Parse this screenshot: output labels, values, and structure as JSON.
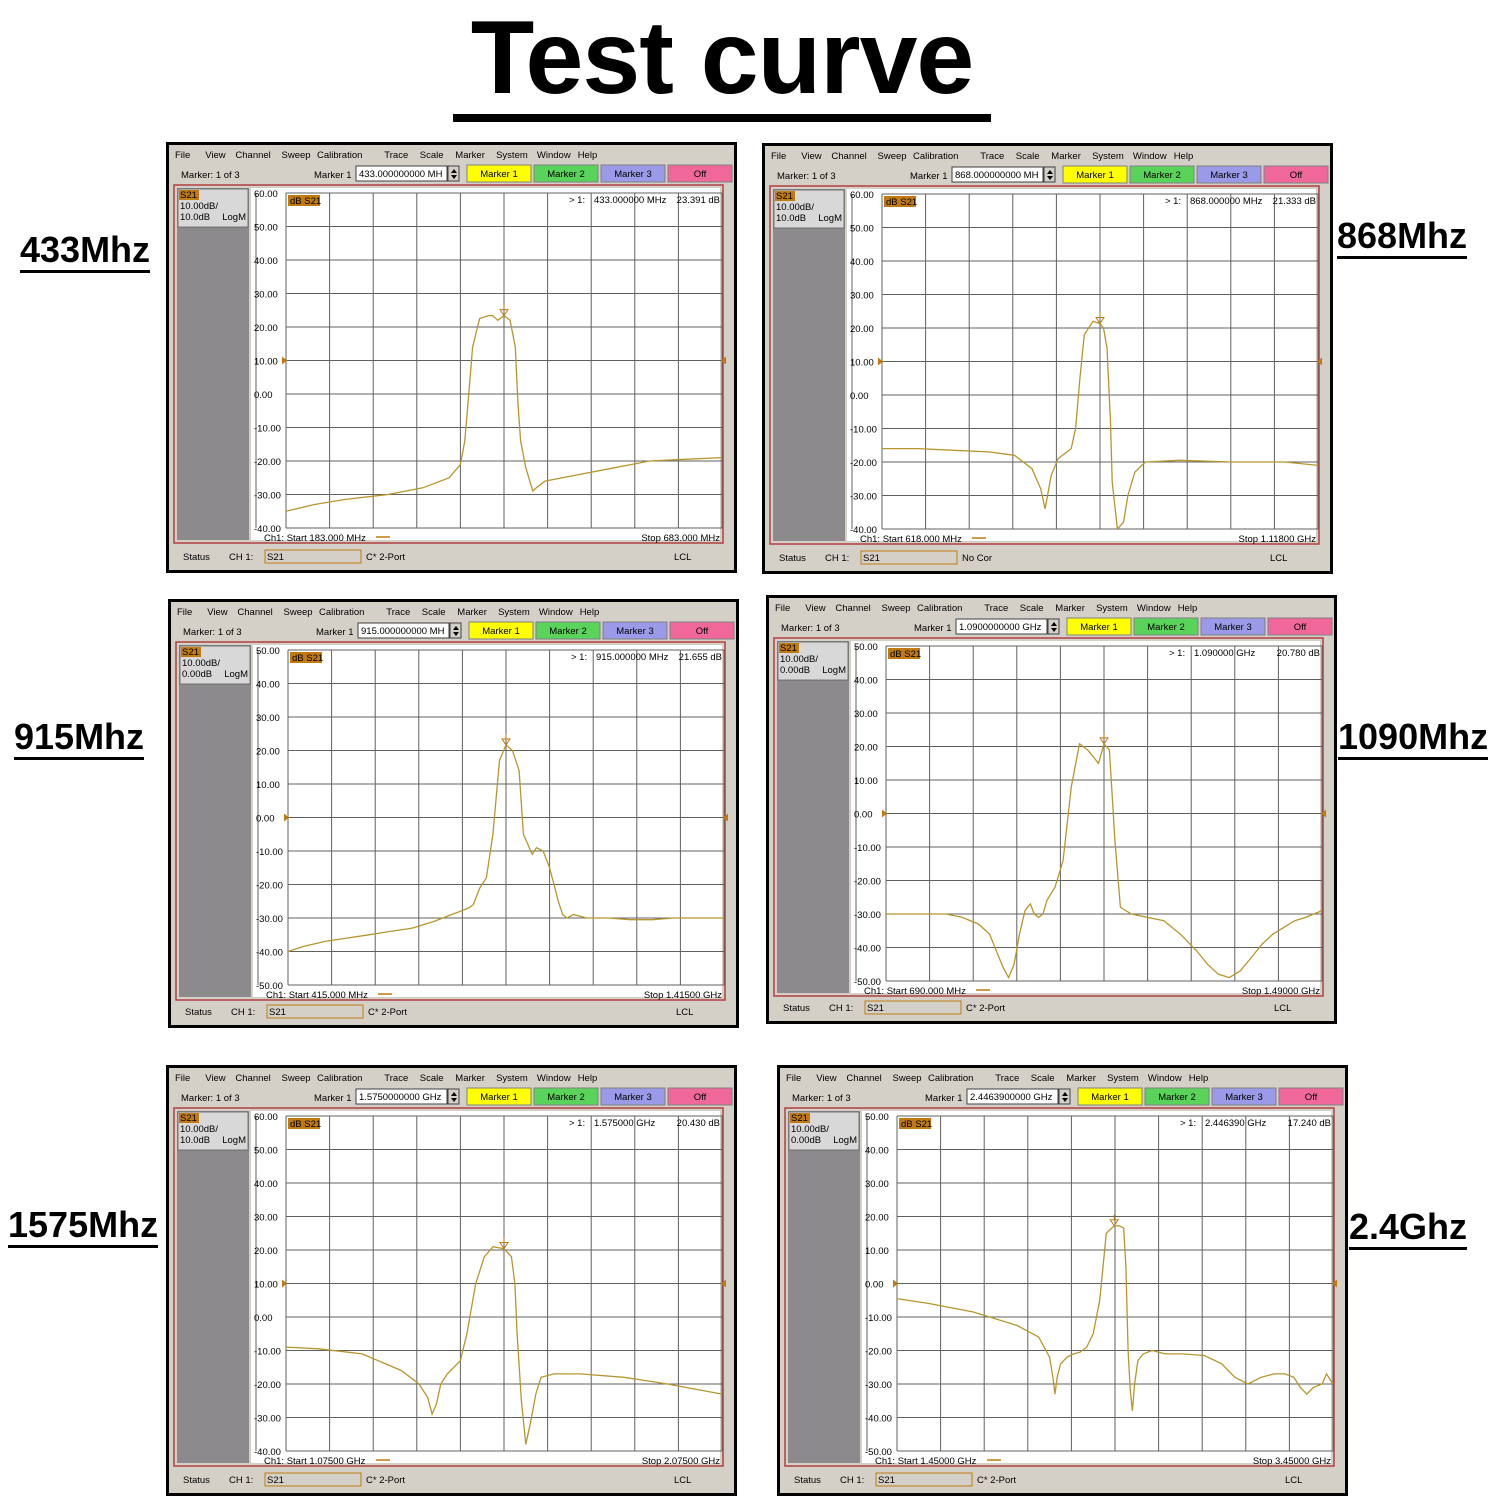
{
  "title": "Test curve",
  "menu": [
    "File",
    "View",
    "Channel",
    "Sweep",
    "Calibration",
    "Trace",
    "Scale",
    "Marker",
    "System",
    "Window",
    "Help"
  ],
  "marker_count_label": "Marker: 1 of 3",
  "marker_field_label": "Marker 1",
  "marker_buttons": [
    {
      "label": "Marker 1",
      "color": "#ffff00"
    },
    {
      "label": "Marker 2",
      "color": "#5ad35a"
    },
    {
      "label": "Marker 3",
      "color": "#9a9ae8"
    },
    {
      "label": "Off",
      "color": "#f0689a"
    }
  ],
  "status_label": "Status",
  "channel_label": "CH 1:",
  "trace_id": "S21",
  "trace_name": "dB S21",
  "lcl": "LCL",
  "colors": {
    "trace": "#b8962e",
    "marker_orange": "#c07a10",
    "window_gray": "#d4d0c8",
    "panel_gray": "#8c8a8c",
    "frame_red": "#b04040"
  },
  "panels": [
    {
      "band": "433Mhz",
      "marker_value": "433.000000000 MH",
      "scale_line1": "10.00dB/",
      "scale_line2": "10.0dB",
      "format": "LogM",
      "marker_readout": {
        "index": "> 1:",
        "freq": "433.000000 MHz",
        "value": "23.391 dB"
      },
      "start_label": "Ch1: Start  183.000 MHz",
      "stop_label": "Stop  683.000 MHz",
      "cal": "C* 2-Port"
    },
    {
      "band": "868Mhz",
      "marker_value": "868.000000000 MH",
      "scale_line1": "10.00dB/",
      "scale_line2": "10.0dB",
      "format": "LogM",
      "marker_readout": {
        "index": "> 1:",
        "freq": "868.000000 MHz",
        "value": "21.333 dB"
      },
      "start_label": "Ch1: Start  618.000 MHz",
      "stop_label": "Stop  1.11800 GHz",
      "cal": "No Cor"
    },
    {
      "band": "915Mhz",
      "marker_value": "915.000000000 MH",
      "scale_line1": "10.00dB/",
      "scale_line2": "0.00dB",
      "format": "LogM",
      "marker_readout": {
        "index": "> 1:",
        "freq": "915.000000 MHz",
        "value": "21.655 dB"
      },
      "start_label": "Ch1: Start  415.000 MHz",
      "stop_label": "Stop  1.41500 GHz",
      "cal": "C* 2-Port"
    },
    {
      "band": "1090Mhz",
      "marker_value": "1.0900000000 GHz",
      "scale_line1": "10.00dB/",
      "scale_line2": "0.00dB",
      "format": "LogM",
      "marker_readout": {
        "index": "> 1:",
        "freq": "1.090000 GHz",
        "value": "20.780 dB"
      },
      "start_label": "Ch1: Start  690.000 MHz",
      "stop_label": "Stop  1.49000 GHz",
      "cal": "C* 2-Port"
    },
    {
      "band": "1575Mhz",
      "marker_value": "1.5750000000 GHz",
      "scale_line1": "10.00dB/",
      "scale_line2": "10.0dB",
      "format": "LogM",
      "marker_readout": {
        "index": "> 1:",
        "freq": "1.575000 GHz",
        "value": "20.430 dB"
      },
      "start_label": "Ch1: Start  1.07500 GHz",
      "stop_label": "Stop  2.07500 GHz",
      "cal": "C* 2-Port"
    },
    {
      "band": "2.4Ghz",
      "marker_value": "2.4463900000 GHz",
      "scale_line1": "10.00dB/",
      "scale_line2": "0.00dB",
      "format": "LogM",
      "marker_readout": {
        "index": "> 1:",
        "freq": "2.446390 GHz",
        "value": "17.240 dB"
      },
      "start_label": "Ch1: Start  1.45000 GHz",
      "stop_label": "Stop  3.45000 GHz",
      "cal": "C* 2-Port"
    }
  ],
  "chart_data": [
    {
      "type": "line",
      "ylim": [
        -40,
        60
      ],
      "yticks": [
        "60.00",
        "50.00",
        "40.00",
        "30.00",
        "20.00",
        "10.00",
        "0.00",
        "-10.00",
        "-20.00",
        "-30.00",
        "-40.00"
      ],
      "xlim_mhz": [
        183,
        683
      ],
      "marker": {
        "x": 433,
        "y": 23.391
      },
      "series": [
        {
          "x": [
            183,
            215,
            250,
            300,
            340,
            370,
            383,
            388,
            392,
            397,
            405,
            415,
            420,
            426,
            433,
            440,
            446,
            449,
            452,
            458,
            466,
            470,
            480,
            520,
            560,
            600,
            640,
            683
          ],
          "y": [
            -35,
            -33,
            -31.5,
            -30,
            -28,
            -25,
            -21,
            -14,
            -2,
            14,
            22.5,
            23.4,
            23.4,
            22,
            23.4,
            22,
            14,
            -3,
            -14,
            -22,
            -29,
            -28,
            -26,
            -24,
            -22,
            -20,
            -19.5,
            -19
          ]
        }
      ]
    },
    {
      "type": "line",
      "ylim": [
        -40,
        60
      ],
      "yticks": [
        "60.00",
        "50.00",
        "40.00",
        "30.00",
        "20.00",
        "10.00",
        "0.00",
        "-10.00",
        "-20.00",
        "-30.00",
        "-40.00"
      ],
      "xlim_mhz": [
        618,
        1118
      ],
      "marker": {
        "x": 868,
        "y": 21.333
      },
      "series": [
        {
          "x": [
            618,
            660,
            700,
            740,
            770,
            790,
            800,
            805,
            812,
            820,
            830,
            835,
            840,
            845,
            850,
            860,
            868,
            872,
            876,
            880,
            882,
            888,
            895,
            900,
            908,
            920,
            960,
            1020,
            1080,
            1118
          ],
          "y": [
            -16,
            -16,
            -16.5,
            -17,
            -18,
            -22,
            -28,
            -34,
            -24,
            -19,
            -17,
            -16,
            -10,
            5,
            18,
            22,
            21.3,
            20,
            14,
            -8,
            -26,
            -40,
            -38,
            -30,
            -23,
            -20,
            -19.5,
            -20,
            -20,
            -21
          ]
        }
      ]
    },
    {
      "type": "line",
      "ylim": [
        -50,
        50
      ],
      "yticks": [
        "50.00",
        "40.00",
        "30.00",
        "20.00",
        "10.00",
        "0.00",
        "-10.00",
        "-20.00",
        "-30.00",
        "-40.00",
        "-50.00"
      ],
      "xlim_mhz": [
        415,
        1415
      ],
      "marker": {
        "x": 915,
        "y": 21.655
      },
      "series": [
        {
          "x": [
            415,
            450,
            500,
            550,
            600,
            650,
            700,
            750,
            790,
            810,
            830,
            840,
            855,
            870,
            885,
            900,
            915,
            930,
            945,
            955,
            965,
            975,
            985,
            1000,
            1015,
            1025,
            1035,
            1045,
            1055,
            1070,
            1085,
            1100,
            1150,
            1200,
            1250,
            1300,
            1350,
            1415
          ],
          "y": [
            -40,
            -38.5,
            -37,
            -36,
            -35,
            -34,
            -33,
            -31,
            -29,
            -28,
            -27,
            -26,
            -21,
            -18,
            -5,
            17,
            21.7,
            20,
            14,
            -5,
            -8,
            -11,
            -9,
            -10,
            -15,
            -20,
            -25,
            -29,
            -30,
            -29,
            -29.5,
            -30,
            -30,
            -30.5,
            -30.5,
            -30,
            -30,
            -30
          ]
        }
      ]
    },
    {
      "type": "line",
      "ylim": [
        -50,
        50
      ],
      "yticks": [
        "50.00",
        "40.00",
        "30.00",
        "20.00",
        "10.00",
        "0.00",
        "-10.00",
        "-20.00",
        "-30.00",
        "-40.00",
        "-50.00"
      ],
      "xlim_mhz": [
        690,
        1490
      ],
      "marker": {
        "x": 1090,
        "y": 20.78
      },
      "series": [
        {
          "x": [
            690,
            720,
            760,
            800,
            830,
            860,
            880,
            895,
            905,
            915,
            925,
            935,
            945,
            955,
            962,
            970,
            978,
            985,
            1000,
            1015,
            1030,
            1045,
            1060,
            1080,
            1090,
            1100,
            1110,
            1120,
            1140,
            1170,
            1200,
            1230,
            1260,
            1280,
            1300,
            1320,
            1340,
            1360,
            1380,
            1400,
            1420,
            1440,
            1460,
            1490
          ],
          "y": [
            -30,
            -30,
            -30,
            -30,
            -31,
            -33,
            -36,
            -42,
            -46,
            -49,
            -45,
            -36,
            -29,
            -27,
            -30,
            -31,
            -30,
            -26,
            -22,
            -14,
            8,
            20.8,
            19,
            15,
            20.78,
            19,
            -8,
            -28,
            -30,
            -31,
            -32,
            -36,
            -41,
            -45,
            -48,
            -49,
            -47,
            -43,
            -39,
            -36,
            -34,
            -32,
            -31,
            -29
          ]
        }
      ]
    },
    {
      "type": "line",
      "ylim": [
        -40,
        60
      ],
      "yticks": [
        "60.00",
        "50.00",
        "40.00",
        "30.00",
        "20.00",
        "10.00",
        "0.00",
        "-10.00",
        "-20.00",
        "-30.00",
        "-40.00"
      ],
      "xlim_mhz": [
        1075,
        2075
      ],
      "marker": {
        "x": 1575,
        "y": 20.43
      },
      "series": [
        {
          "x": [
            1075,
            1150,
            1250,
            1340,
            1380,
            1400,
            1410,
            1420,
            1430,
            1445,
            1460,
            1475,
            1490,
            1510,
            1530,
            1550,
            1575,
            1592,
            1600,
            1605,
            1615,
            1625,
            1635,
            1648,
            1660,
            1690,
            1750,
            1850,
            1950,
            2075
          ],
          "y": [
            -9,
            -9.5,
            -11,
            -16,
            -20,
            -24,
            -29,
            -26,
            -20,
            -17,
            -15,
            -13,
            -5,
            10,
            18,
            21,
            20.4,
            18,
            10,
            -5,
            -25,
            -38,
            -32,
            -23,
            -18,
            -17,
            -17,
            -18,
            -20,
            -23
          ]
        }
      ]
    },
    {
      "type": "line",
      "ylim": [
        -50,
        50
      ],
      "yticks": [
        "50.00",
        "40.00",
        "30.00",
        "20.00",
        "10.00",
        "0.00",
        "-10.00",
        "-20.00",
        "-30.00",
        "-40.00",
        "-50.00"
      ],
      "xlim_mhz": [
        1450,
        3450
      ],
      "marker": {
        "x": 2446.39,
        "y": 17.24
      },
      "series": [
        {
          "x": [
            1450,
            1600,
            1800,
            2000,
            2100,
            2150,
            2165,
            2175,
            2185,
            2200,
            2230,
            2260,
            2290,
            2320,
            2350,
            2380,
            2410,
            2446,
            2470,
            2490,
            2500,
            2510,
            2520,
            2530,
            2540,
            2555,
            2580,
            2620,
            2680,
            2760,
            2860,
            2940,
            3000,
            3060,
            3120,
            3180,
            3230,
            3270,
            3300,
            3330,
            3360,
            3400,
            3420,
            3450
          ],
          "y": [
            -4.5,
            -6,
            -8.5,
            -12.5,
            -16,
            -22,
            -28,
            -33,
            -28,
            -24,
            -22,
            -21,
            -20.5,
            -19,
            -15,
            -5,
            15,
            17.2,
            17.2,
            16.5,
            5,
            -20,
            -32,
            -38,
            -30,
            -23,
            -21,
            -20,
            -21,
            -21,
            -21.5,
            -24,
            -28,
            -30,
            -28,
            -27,
            -27,
            -28,
            -31,
            -33,
            -31,
            -30,
            -27,
            -30
          ]
        }
      ]
    }
  ]
}
